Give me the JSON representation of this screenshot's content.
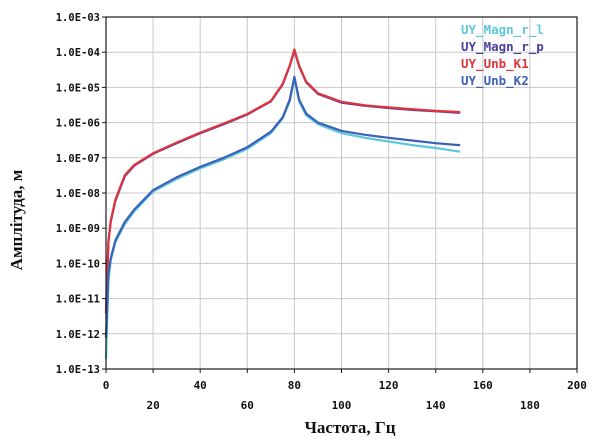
{
  "chart_data": {
    "type": "line",
    "xlabel": "Частота, Гц",
    "ylabel": "Амплітуда, м",
    "xlim": [
      0,
      200
    ],
    "ylim": [
      1e-13,
      0.001
    ],
    "yscale": "log",
    "grid": true,
    "legend_position": "top-right",
    "x_ticks": [
      "0",
      "20",
      "40",
      "60",
      "80",
      "100",
      "120",
      "140",
      "160",
      "180",
      "200"
    ],
    "y_ticks": [
      "1.0E-13",
      "1.0E-12",
      "1.0E-11",
      "1.0E-10",
      "1.0E-09",
      "1.0E-08",
      "1.0E-07",
      "1.0E-06",
      "1.0E-05",
      "1.0E-04",
      "1.0E-03"
    ],
    "series": [
      {
        "name": "UY_Magn_r_l",
        "color": "#5bc8dc",
        "x": [
          0,
          1,
          2,
          4,
          8,
          12,
          20,
          30,
          40,
          50,
          60,
          70,
          75,
          78,
          80,
          82,
          85,
          90,
          100,
          110,
          120,
          130,
          140,
          150
        ],
        "y": [
          2e-13,
          3e-11,
          1.2e-10,
          4e-10,
          1.3e-09,
          3e-09,
          1.1e-08,
          2.5e-08,
          5e-08,
          9e-08,
          1.8e-07,
          5e-07,
          1.3e-06,
          4e-06,
          1.8e-05,
          4e-06,
          1.6e-06,
          9e-07,
          5e-07,
          3.7e-07,
          2.9e-07,
          2.3e-07,
          1.9e-07,
          1.5e-07
        ]
      },
      {
        "name": "UY_Magn_r_p",
        "color": "#4a40a0",
        "x": [
          0,
          1,
          2,
          4,
          8,
          12,
          20,
          30,
          40,
          50,
          60,
          70,
          75,
          78,
          80,
          82,
          85,
          90,
          100,
          110,
          120,
          130,
          140,
          150
        ],
        "y": [
          4e-12,
          4e-10,
          1.5e-09,
          6e-09,
          3e-08,
          6e-08,
          1.3e-07,
          2.6e-07,
          5e-07,
          9e-07,
          1.7e-06,
          4e-06,
          1.2e-05,
          4e-05,
          0.00011,
          4e-05,
          1.4e-05,
          6.5e-06,
          3.7e-06,
          3e-06,
          2.6e-06,
          2.3e-06,
          2.1e-06,
          1.9e-06
        ]
      },
      {
        "name": "UY_Unb_K1",
        "color": "#e0343c",
        "x": [
          0,
          1,
          2,
          4,
          8,
          12,
          20,
          30,
          40,
          50,
          60,
          70,
          75,
          78,
          80,
          82,
          85,
          90,
          100,
          110,
          120,
          130,
          140,
          150
        ],
        "y": [
          4e-12,
          4e-10,
          1.6e-09,
          6.5e-09,
          3.2e-08,
          6.3e-08,
          1.35e-07,
          2.7e-07,
          5.2e-07,
          9.4e-07,
          1.75e-06,
          4.1e-06,
          1.25e-05,
          4.2e-05,
          0.00012,
          4.2e-05,
          1.45e-05,
          6.8e-06,
          3.9e-06,
          3.1e-06,
          2.7e-06,
          2.4e-06,
          2.15e-06,
          2e-06
        ]
      },
      {
        "name": "UY_Unb_K2",
        "color": "#3a60b8",
        "x": [
          0,
          1,
          2,
          4,
          8,
          12,
          20,
          30,
          40,
          50,
          60,
          70,
          75,
          78,
          80,
          82,
          85,
          90,
          100,
          110,
          120,
          130,
          140,
          150
        ],
        "y": [
          8e-13,
          5e-11,
          1.4e-10,
          4.5e-10,
          1.5e-09,
          3.4e-09,
          1.2e-08,
          2.8e-08,
          5.5e-08,
          1e-07,
          2e-07,
          5.5e-07,
          1.4e-06,
          4.5e-06,
          2e-05,
          4.5e-06,
          1.8e-06,
          1e-06,
          5.8e-07,
          4.5e-07,
          3.7e-07,
          3.1e-07,
          2.6e-07,
          2.3e-07
        ]
      }
    ]
  }
}
